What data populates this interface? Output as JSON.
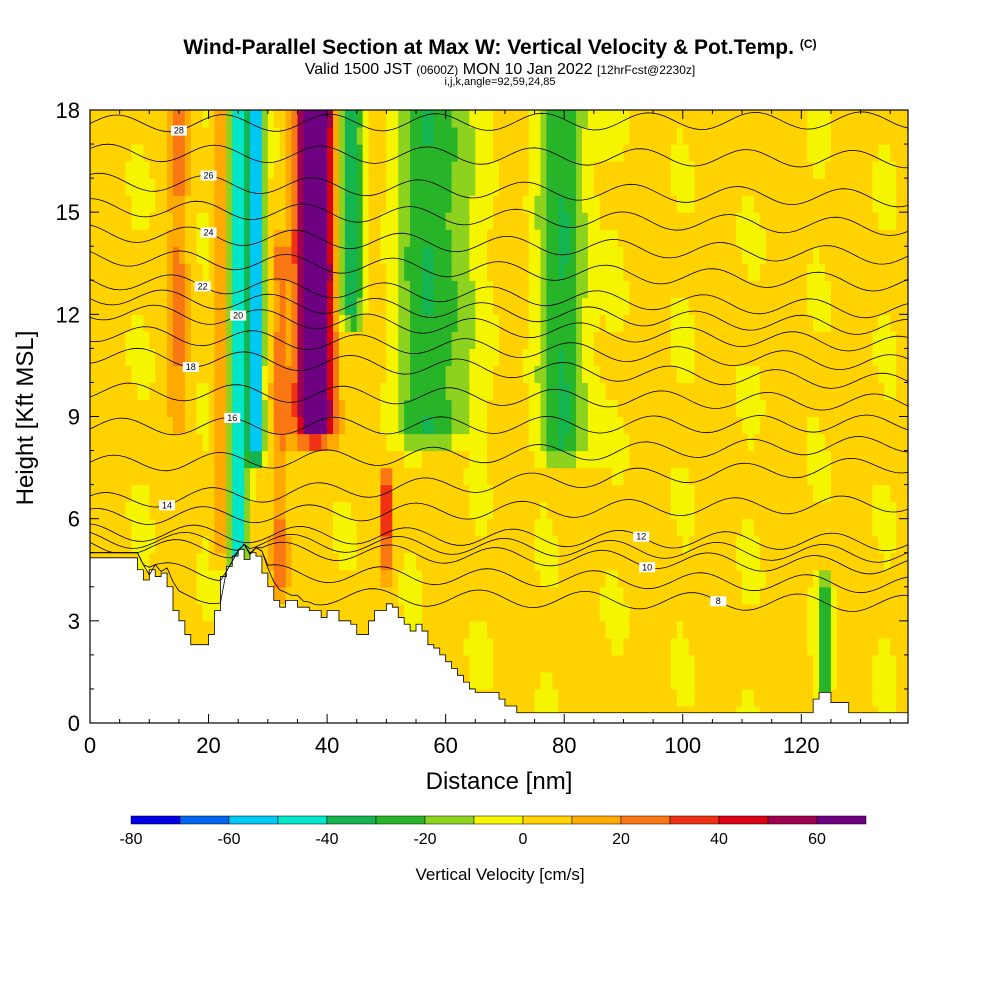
{
  "header": {
    "title": "Wind-Parallel Section at Max W: Vertical Velocity & Pot.Temp.",
    "title_tag": "(C)",
    "subtitle_prefix": "Valid 1500 JST",
    "subtitle_zulu": "(0600Z)",
    "subtitle_date": "MON 10 Jan 2022",
    "subtitle_fcst": "[12hrFcst@2230z]",
    "params": "i,j,k,angle=92,59,24,85"
  },
  "chart_data": {
    "type": "heatmap",
    "title": "Wind-Parallel Section at Max W: Vertical Velocity & Pot.Temp.",
    "xlabel": "Distance [nm]",
    "ylabel": "Height [Kft MSL]",
    "xlim": [
      0,
      138
    ],
    "ylim": [
      0,
      18
    ],
    "x_ticks": [
      0,
      20,
      40,
      60,
      80,
      100,
      120
    ],
    "y_ticks": [
      0,
      3,
      6,
      9,
      12,
      15,
      18
    ],
    "colorbar": {
      "title": "Vertical Velocity [cm/s]",
      "levels": [
        -80,
        -70,
        -60,
        -50,
        -40,
        -30,
        -20,
        -10,
        0,
        10,
        20,
        30,
        40,
        50,
        60,
        70
      ],
      "tick_labels": [
        "-80",
        "-60",
        "-40",
        "-20",
        "0",
        "20",
        "40",
        "60"
      ],
      "tick_values": [
        -80,
        -60,
        -40,
        -20,
        0,
        20,
        40,
        60
      ],
      "colors": [
        "#0000e6",
        "#0064f0",
        "#00c8f5",
        "#00e6c8",
        "#14b450",
        "#28b428",
        "#8cd21e",
        "#f5f500",
        "#ffd200",
        "#ffaa00",
        "#fa7814",
        "#f03214",
        "#dc0014",
        "#a00050",
        "#6e0082"
      ]
    },
    "terrain": [
      [
        0,
        4.85
      ],
      [
        7,
        4.85
      ],
      [
        8,
        4.5
      ],
      [
        9,
        4.2
      ],
      [
        10,
        4.5
      ],
      [
        11,
        4.3
      ],
      [
        12,
        4.4
      ],
      [
        13,
        4.0
      ],
      [
        14,
        3.3
      ],
      [
        15,
        3.0
      ],
      [
        16,
        2.6
      ],
      [
        17,
        2.3
      ],
      [
        19,
        2.3
      ],
      [
        20,
        2.6
      ],
      [
        21,
        3.3
      ],
      [
        22,
        4.3
      ],
      [
        23,
        4.6
      ],
      [
        24,
        4.9
      ],
      [
        25,
        5.1
      ],
      [
        26,
        4.8
      ],
      [
        27,
        5.0
      ],
      [
        28,
        4.9
      ],
      [
        29,
        4.4
      ],
      [
        30,
        4.0
      ],
      [
        31,
        3.6
      ],
      [
        32,
        3.4
      ],
      [
        33,
        3.6
      ],
      [
        34,
        3.6
      ],
      [
        35,
        3.4
      ],
      [
        36,
        3.4
      ],
      [
        37,
        3.3
      ],
      [
        38,
        3.3
      ],
      [
        39,
        3.1
      ],
      [
        40,
        3.3
      ],
      [
        41,
        3.3
      ],
      [
        42,
        3.0
      ],
      [
        43,
        3.0
      ],
      [
        44,
        2.9
      ],
      [
        45,
        2.6
      ],
      [
        46,
        2.6
      ],
      [
        47,
        3.0
      ],
      [
        48,
        3.3
      ],
      [
        49,
        3.3
      ],
      [
        50,
        3.5
      ],
      [
        51,
        3.4
      ],
      [
        52,
        3.1
      ],
      [
        53,
        2.9
      ],
      [
        54,
        2.7
      ],
      [
        55,
        2.9
      ],
      [
        56,
        2.7
      ],
      [
        57,
        2.3
      ],
      [
        58,
        2.2
      ],
      [
        59,
        2.0
      ],
      [
        60,
        1.8
      ],
      [
        61,
        1.6
      ],
      [
        62,
        1.4
      ],
      [
        63,
        1.2
      ],
      [
        64,
        1.0
      ],
      [
        65,
        0.9
      ],
      [
        66,
        0.9
      ],
      [
        67,
        0.9
      ],
      [
        68,
        0.9
      ],
      [
        69,
        0.7
      ],
      [
        70,
        0.5
      ],
      [
        71,
        0.5
      ],
      [
        72,
        0.3
      ],
      [
        121,
        0.3
      ],
      [
        122,
        0.7
      ],
      [
        123,
        0.9
      ],
      [
        124,
        0.9
      ],
      [
        125,
        0.6
      ],
      [
        127,
        0.6
      ],
      [
        128,
        0.3
      ],
      [
        138,
        0.3
      ]
    ],
    "velocity_features": [
      {
        "x": 25,
        "half_width": 1.6,
        "y_from": 4.5,
        "y_to": 18,
        "value": -55
      },
      {
        "x": 28,
        "half_width": 1.2,
        "y_from": 8,
        "y_to": 18,
        "value": -65
      },
      {
        "x": 38,
        "half_width": 2.5,
        "y_from": 9,
        "y_to": 18,
        "value": 65
      },
      {
        "x": 38,
        "half_width": 3.5,
        "y_from": 8.5,
        "y_to": 18,
        "value": 45
      },
      {
        "x": 44,
        "half_width": 2,
        "y_from": 12,
        "y_to": 18,
        "value": -40
      },
      {
        "x": 58,
        "half_width": 6,
        "y_from": 8.5,
        "y_to": 18,
        "value": -30
      },
      {
        "x": 80,
        "half_width": 4,
        "y_from": 8,
        "y_to": 18,
        "value": -30
      },
      {
        "x": 22,
        "half_width": 1,
        "y_from": 5,
        "y_to": 18,
        "value": 25
      },
      {
        "x": 32,
        "half_width": 1.5,
        "y_from": 4,
        "y_to": 14,
        "value": 25
      },
      {
        "x": 15,
        "half_width": 1.5,
        "y_from": 9,
        "y_to": 18,
        "value": 20
      },
      {
        "x": 124,
        "half_width": 1,
        "y_from": 0.5,
        "y_to": 4,
        "value": -30
      },
      {
        "x": 50,
        "half_width": 0.8,
        "y_from": 4.5,
        "y_to": 7,
        "value": 40
      }
    ],
    "theta_contour_labels": [
      "28",
      "26",
      "24",
      "22",
      "20",
      "18",
      "16",
      "14",
      "12",
      "10",
      "8"
    ],
    "theta_contours": [
      {
        "label": "28",
        "y_left": 17.6,
        "y_right": 17.7,
        "label_x": 15
      },
      {
        "label": "26",
        "y_left": 15.9,
        "y_right": 15.4,
        "label_x": 20
      },
      {
        "label": "24",
        "y_left": 14.4,
        "y_right": 13.7,
        "label_x": 20
      },
      {
        "label": "22",
        "y_left": 13.0,
        "y_right": 12.1,
        "label_x": 19
      },
      {
        "label": "20",
        "y_left": 12.1,
        "y_right": 11.1,
        "label_x": 25
      },
      {
        "label": "18",
        "y_left": 10.8,
        "y_right": 10.0,
        "label_x": 17
      },
      {
        "label": "16",
        "y_left": 8.7,
        "y_right": 8.8,
        "label_x": 24
      },
      {
        "label": "14",
        "y_left": 6.5,
        "y_right": 7.6,
        "label_x": 13
      },
      {
        "label": "12",
        "y_left": 5.6,
        "y_right": 5.3,
        "label_x": 93
      },
      {
        "label": "10",
        "y_left": 5.2,
        "y_right": 4.6,
        "label_x": 94
      },
      {
        "label": "8",
        "y_left": 3.8,
        "y_right": 3.5,
        "label_x": 106
      }
    ]
  }
}
